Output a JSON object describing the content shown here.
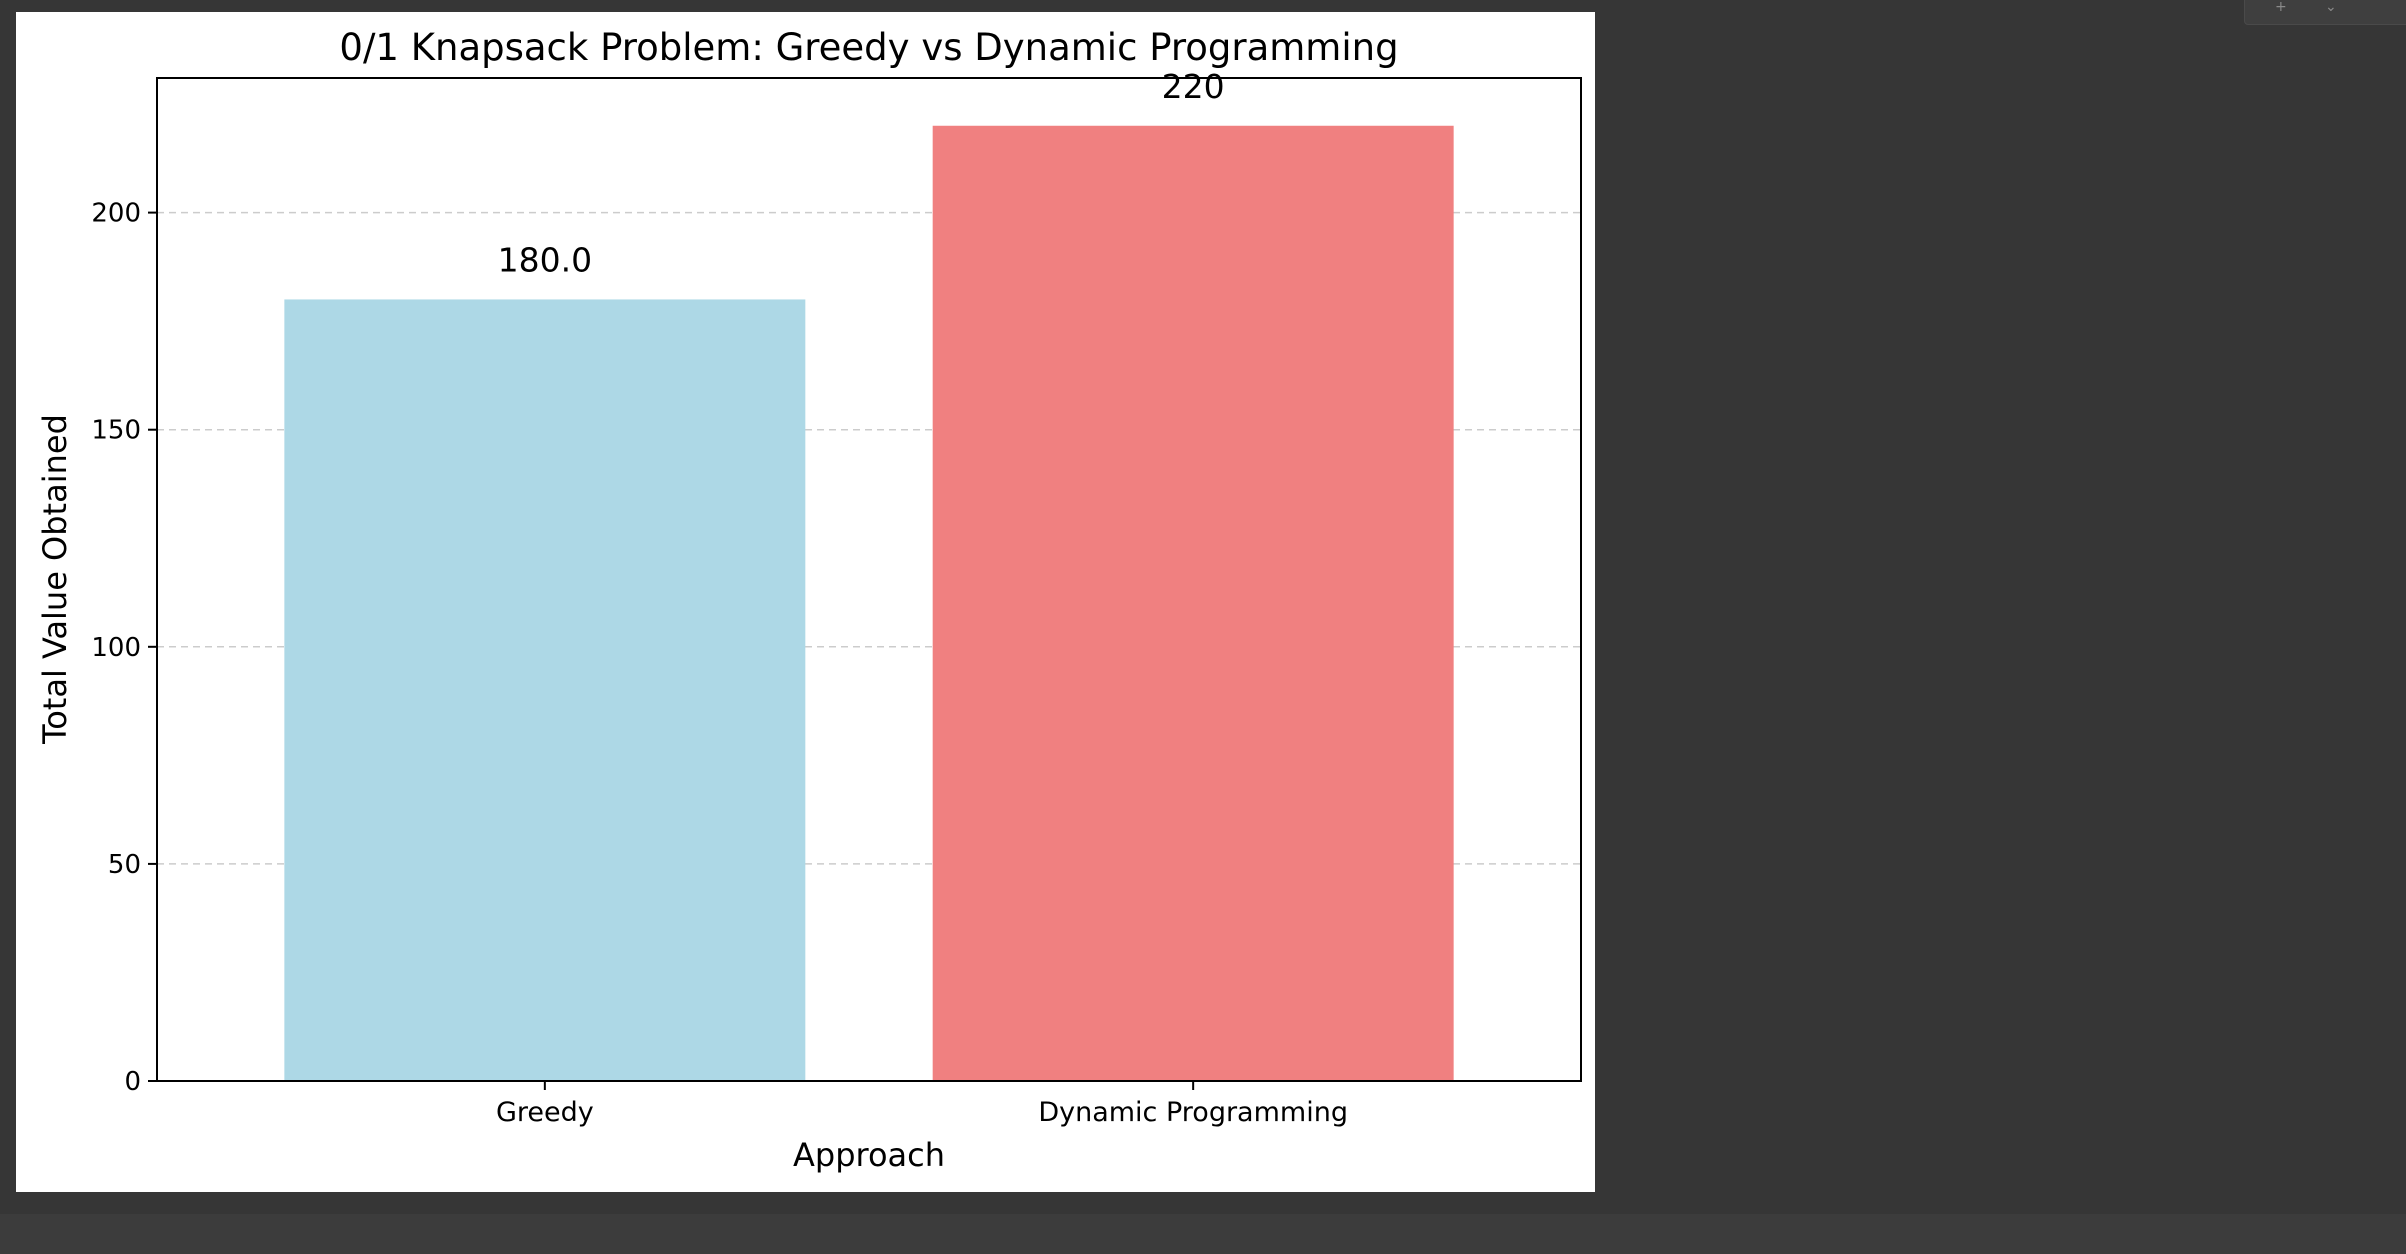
{
  "chart_data": {
    "type": "bar",
    "title": "0/1 Knapsack Problem: Greedy vs Dynamic Programming",
    "xlabel": "Approach",
    "ylabel": "Total Value Obtained",
    "categories": [
      "Greedy",
      "Dynamic Programming"
    ],
    "values": [
      180,
      220
    ],
    "data_labels": [
      "180.0",
      "220"
    ],
    "bar_colors": [
      "#add8e6",
      "#f08080"
    ],
    "ylim": [
      0,
      231
    ],
    "yticks": [
      0,
      50,
      100,
      150,
      200
    ],
    "grid": {
      "axis": "y",
      "style": "dashed"
    },
    "legend": "none"
  },
  "colors": {
    "background": "#363636",
    "figure": "#ffffff",
    "grid": "#cccccc",
    "axis": "#000000"
  },
  "toolbar_icons": [
    "plus-icon",
    "chevron-down-icon"
  ]
}
